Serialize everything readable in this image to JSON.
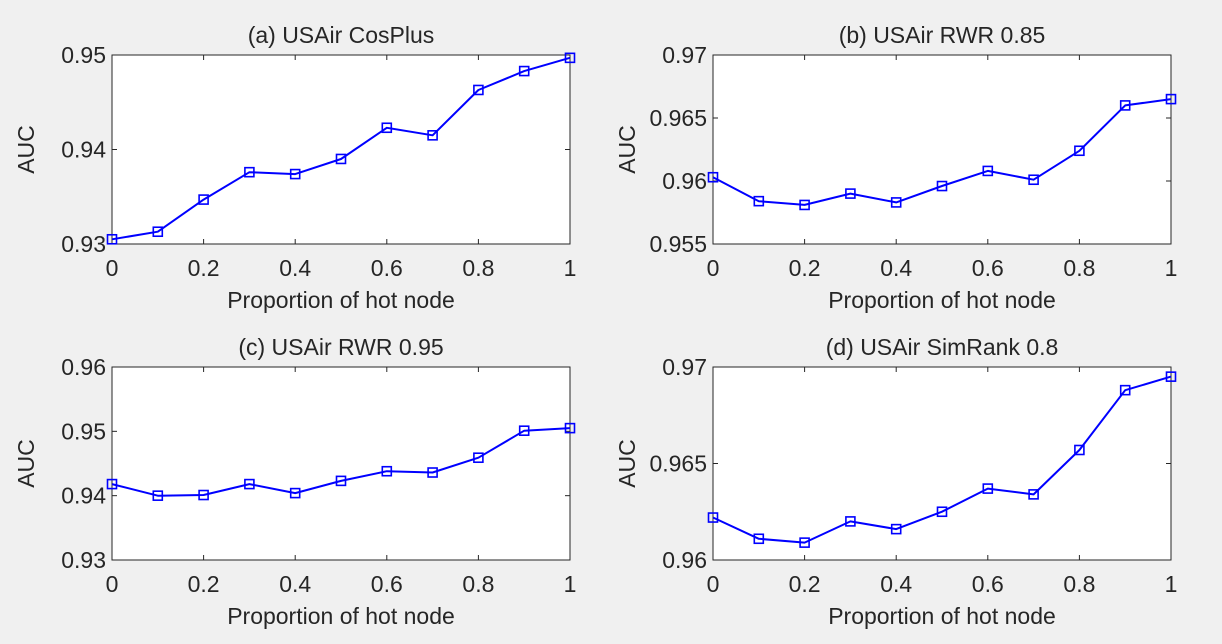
{
  "chart_data": [
    {
      "type": "line",
      "title": "(a) USAir CosPlus",
      "xlabel": "Proportion of hot node",
      "ylabel": "AUC",
      "x": [
        0,
        0.1,
        0.2,
        0.3,
        0.4,
        0.5,
        0.6,
        0.7,
        0.8,
        0.9,
        1
      ],
      "series": [
        {
          "values": [
            0.9305,
            0.9313,
            0.9347,
            0.9376,
            0.9374,
            0.939,
            0.9423,
            0.9415,
            0.9463,
            0.9483,
            0.9497
          ]
        }
      ],
      "xlim": [
        0,
        1
      ],
      "ylim": [
        0.93,
        0.95
      ],
      "xticks": [
        0,
        0.2,
        0.4,
        0.6,
        0.8,
        1
      ],
      "xtick_labels": [
        "0",
        "0.2",
        "0.4",
        "0.6",
        "0.8",
        "1"
      ],
      "yticks": [
        0.93,
        0.94,
        0.95
      ],
      "ytick_labels": [
        "0.93",
        "0.94",
        "0.95"
      ],
      "marker": "square",
      "color": "#0000ff",
      "grid": false
    },
    {
      "type": "line",
      "title": "(b) USAir RWR 0.85",
      "xlabel": "Proportion of hot node",
      "ylabel": "AUC",
      "x": [
        0,
        0.1,
        0.2,
        0.3,
        0.4,
        0.5,
        0.6,
        0.7,
        0.8,
        0.9,
        1
      ],
      "series": [
        {
          "values": [
            0.9603,
            0.9584,
            0.9581,
            0.959,
            0.9583,
            0.9596,
            0.9608,
            0.9601,
            0.9624,
            0.966,
            0.9665
          ]
        }
      ],
      "xlim": [
        0,
        1
      ],
      "ylim": [
        0.955,
        0.97
      ],
      "xticks": [
        0,
        0.2,
        0.4,
        0.6,
        0.8,
        1
      ],
      "xtick_labels": [
        "0",
        "0.2",
        "0.4",
        "0.6",
        "0.8",
        "1"
      ],
      "yticks": [
        0.955,
        0.96,
        0.965,
        0.97
      ],
      "ytick_labels": [
        "0.955",
        "0.96",
        "0.965",
        "0.97"
      ],
      "marker": "square",
      "color": "#0000ff",
      "grid": false
    },
    {
      "type": "line",
      "title": "(c) USAir RWR 0.95",
      "xlabel": "Proportion of hot node",
      "ylabel": "AUC",
      "x": [
        0,
        0.1,
        0.2,
        0.3,
        0.4,
        0.5,
        0.6,
        0.7,
        0.8,
        0.9,
        1
      ],
      "series": [
        {
          "values": [
            0.9418,
            0.94,
            0.9401,
            0.9418,
            0.9404,
            0.9423,
            0.9438,
            0.9436,
            0.9459,
            0.9501,
            0.9505
          ]
        }
      ],
      "xlim": [
        0,
        1
      ],
      "ylim": [
        0.93,
        0.96
      ],
      "xticks": [
        0,
        0.2,
        0.4,
        0.6,
        0.8,
        1
      ],
      "xtick_labels": [
        "0",
        "0.2",
        "0.4",
        "0.6",
        "0.8",
        "1"
      ],
      "yticks": [
        0.93,
        0.94,
        0.95,
        0.96
      ],
      "ytick_labels": [
        "0.93",
        "0.94",
        "0.95",
        "0.96"
      ],
      "marker": "square",
      "color": "#0000ff",
      "grid": false
    },
    {
      "type": "line",
      "title": "(d) USAir SimRank 0.8",
      "xlabel": "Proportion of hot node",
      "ylabel": "AUC",
      "x": [
        0,
        0.1,
        0.2,
        0.3,
        0.4,
        0.5,
        0.6,
        0.7,
        0.8,
        0.9,
        1
      ],
      "series": [
        {
          "values": [
            0.9622,
            0.9611,
            0.9609,
            0.962,
            0.9616,
            0.9625,
            0.9637,
            0.9634,
            0.9657,
            0.9688,
            0.9695
          ]
        }
      ],
      "xlim": [
        0,
        1
      ],
      "ylim": [
        0.96,
        0.97
      ],
      "xticks": [
        0,
        0.2,
        0.4,
        0.6,
        0.8,
        1
      ],
      "xtick_labels": [
        "0",
        "0.2",
        "0.4",
        "0.6",
        "0.8",
        "1"
      ],
      "yticks": [
        0.96,
        0.965,
        0.97
      ],
      "ytick_labels": [
        "0.96",
        "0.965",
        "0.97"
      ],
      "marker": "square",
      "color": "#0000ff",
      "grid": false
    }
  ]
}
